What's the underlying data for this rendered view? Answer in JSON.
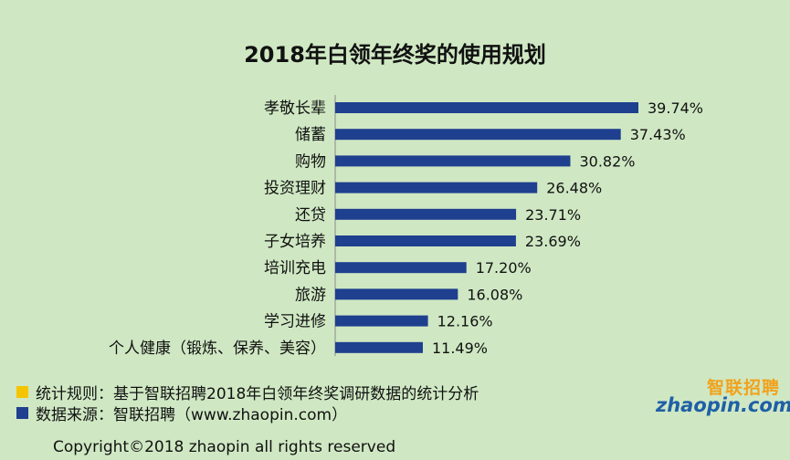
{
  "chart_data": {
    "type": "bar",
    "orientation": "horizontal",
    "title": "2018年白领年终奖的使用规划",
    "categories": [
      "孝敬长辈",
      "储蓄",
      "购物",
      "投资理财",
      "还贷",
      "子女培养",
      "培训充电",
      "旅游",
      "学习进修",
      "个人健康（锻炼、保养、美容）"
    ],
    "values": [
      39.74,
      37.43,
      30.82,
      26.48,
      23.71,
      23.69,
      17.2,
      16.08,
      12.16,
      11.49
    ],
    "value_labels": [
      "39.74%",
      "37.43%",
      "30.82%",
      "26.48%",
      "23.71%",
      "23.69%",
      "17.20%",
      "16.08%",
      "12.16%",
      "11.49%"
    ],
    "xlim": [
      0,
      45
    ],
    "bar_color": "#1f3f8f",
    "grid": false
  },
  "notes": [
    {
      "text": "统计规则：基于智联招聘2018年白领年终奖调研数据的统计分析",
      "color": "#f5c400"
    },
    {
      "text": "数据来源：智联招聘（www.zhaopin.com）",
      "color": "#1f3f8f"
    }
  ],
  "copyright": "Copyright©2018 zhaopin all rights reserved",
  "logo": {
    "cn": "智联招聘",
    "en": "zhaopin.com"
  }
}
